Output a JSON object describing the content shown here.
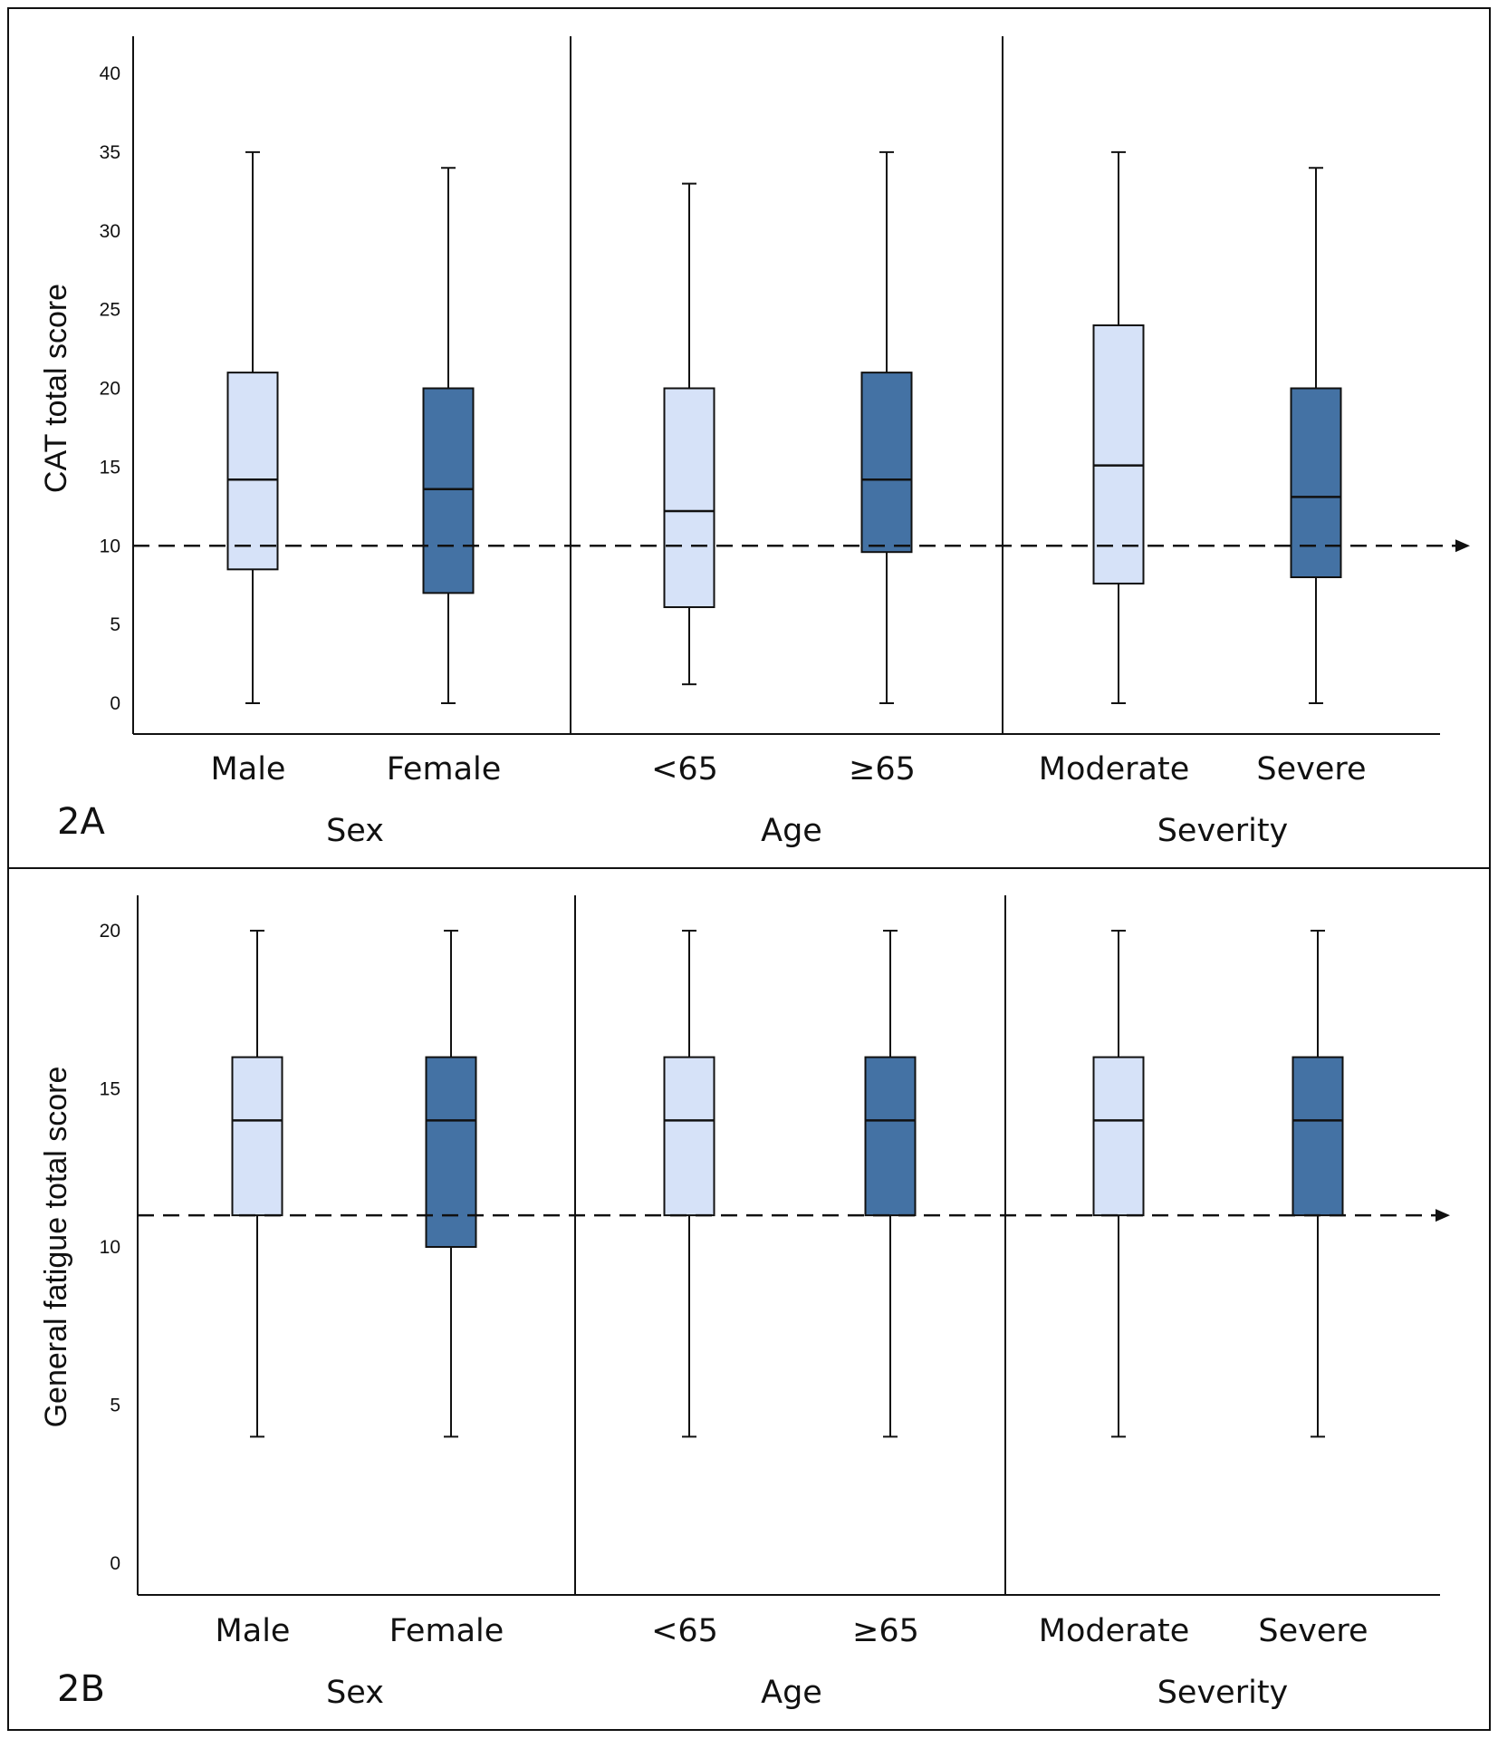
{
  "colors": {
    "light": "#d6e2f8",
    "dark": "#4472a4",
    "stroke": "#111111",
    "background": "#ffffff"
  },
  "chart_data": [
    {
      "panel": "2A",
      "type": "boxplot",
      "ylabel": "CAT total score",
      "ylim": [
        0,
        40
      ],
      "yticks": [
        0,
        5,
        10,
        15,
        20,
        25,
        30,
        35,
        40
      ],
      "threshold": 10,
      "groups": [
        {
          "label": "Sex",
          "categories": [
            {
              "label": "Male",
              "fill": "light",
              "min": 0,
              "q1": 8.5,
              "median": 14.2,
              "q3": 21,
              "max": 35
            },
            {
              "label": "Female",
              "fill": "dark",
              "min": 0,
              "q1": 7,
              "median": 13.6,
              "q3": 20,
              "max": 34
            }
          ]
        },
        {
          "label": "Age",
          "categories": [
            {
              "label": "<65",
              "fill": "light",
              "min": 1.2,
              "q1": 6.1,
              "median": 12.2,
              "q3": 20,
              "max": 33
            },
            {
              "label": "≥65",
              "fill": "dark",
              "min": 0,
              "q1": 9.6,
              "median": 14.2,
              "q3": 21,
              "max": 35
            }
          ]
        },
        {
          "label": "Severity",
          "categories": [
            {
              "label": "Moderate",
              "fill": "light",
              "min": 0,
              "q1": 7.6,
              "median": 15.1,
              "q3": 24,
              "max": 35
            },
            {
              "label": "Severe",
              "fill": "dark",
              "min": 0,
              "q1": 8,
              "median": 13.1,
              "q3": 20,
              "max": 34
            }
          ]
        }
      ]
    },
    {
      "panel": "2B",
      "type": "boxplot",
      "ylabel": "General fatigue total score",
      "ylim": [
        0,
        20
      ],
      "yticks": [
        0,
        5,
        10,
        15,
        20
      ],
      "threshold": 11,
      "groups": [
        {
          "label": "Sex",
          "categories": [
            {
              "label": "Male",
              "fill": "light",
              "min": 4,
              "q1": 11,
              "median": 14,
              "q3": 16,
              "max": 20
            },
            {
              "label": "Female",
              "fill": "dark",
              "min": 4,
              "q1": 10,
              "median": 14,
              "q3": 16,
              "max": 20
            }
          ]
        },
        {
          "label": "Age",
          "categories": [
            {
              "label": "<65",
              "fill": "light",
              "min": 4,
              "q1": 11,
              "median": 14,
              "q3": 16,
              "max": 20
            },
            {
              "label": "≥65",
              "fill": "dark",
              "min": 4,
              "q1": 11,
              "median": 14,
              "q3": 16,
              "max": 20
            }
          ]
        },
        {
          "label": "Severity",
          "categories": [
            {
              "label": "Moderate",
              "fill": "light",
              "min": 4,
              "q1": 11,
              "median": 14,
              "q3": 16,
              "max": 20
            },
            {
              "label": "Severe",
              "fill": "dark",
              "min": 4,
              "q1": 11,
              "median": 14,
              "q3": 16,
              "max": 20
            }
          ]
        }
      ]
    }
  ]
}
